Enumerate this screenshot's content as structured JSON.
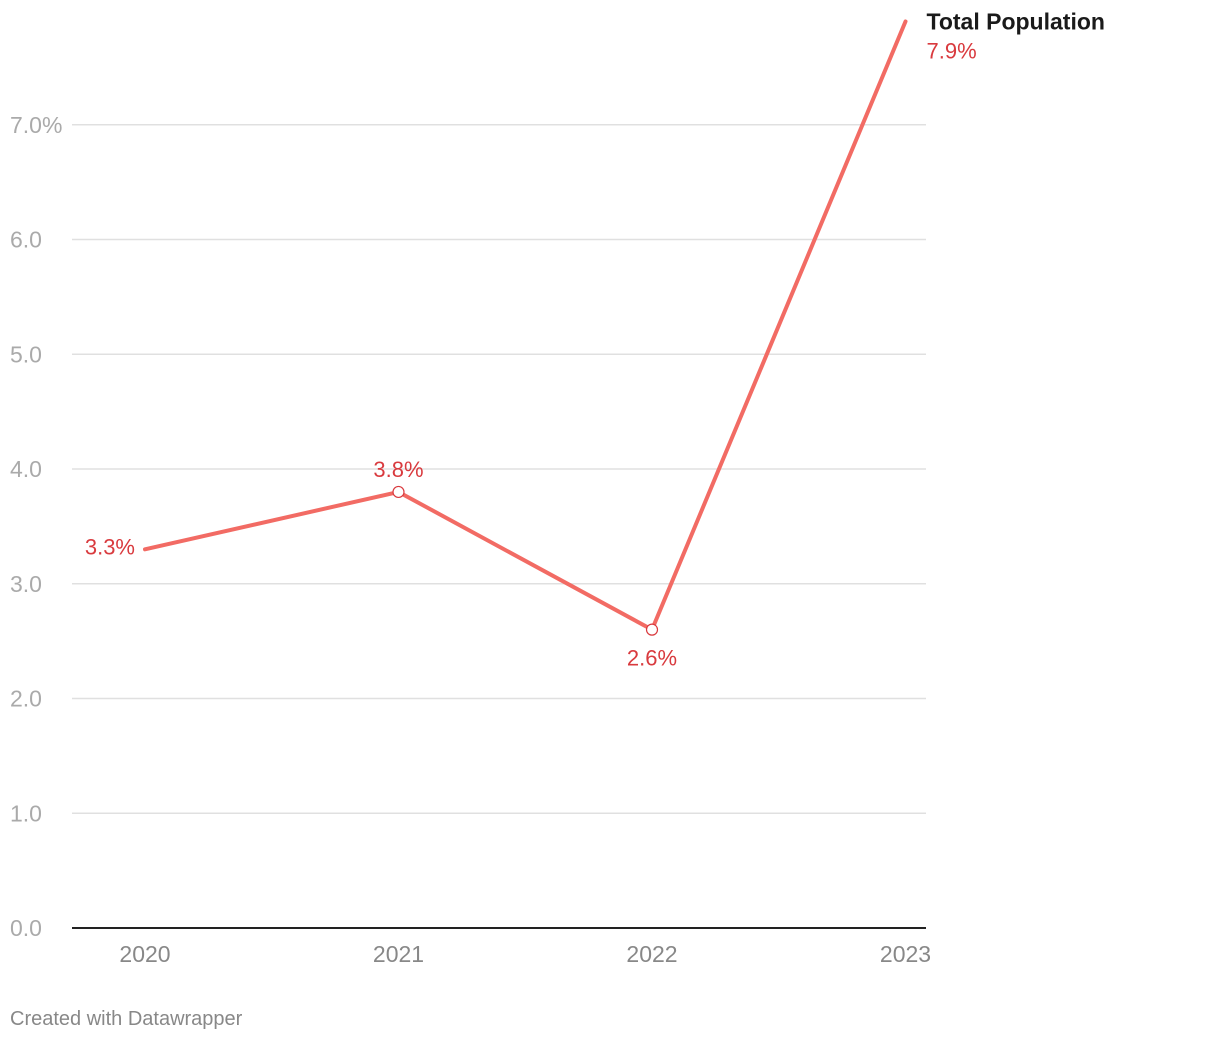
{
  "chart_data": {
    "type": "line",
    "title": "",
    "xlabel": "",
    "ylabel": "",
    "categories": [
      "2020",
      "2021",
      "2022",
      "2023"
    ],
    "series": [
      {
        "name": "Total Population",
        "values": [
          3.3,
          3.8,
          2.6,
          7.9
        ],
        "labels": [
          "3.3%",
          "3.8%",
          "2.6%",
          "7.9%"
        ],
        "color": "#f26b64",
        "label_color": "#d93a3e"
      }
    ],
    "y_ticks": [
      0.0,
      1.0,
      2.0,
      3.0,
      4.0,
      5.0,
      6.0,
      7.0
    ],
    "y_tick_labels": [
      "0.0",
      "1.0",
      "2.0",
      "3.0",
      "4.0",
      "5.0",
      "6.0",
      "7.0%"
    ],
    "ylim": [
      0,
      7.9
    ],
    "grid": true
  },
  "footer": {
    "credit": "Created with Datawrapper"
  }
}
